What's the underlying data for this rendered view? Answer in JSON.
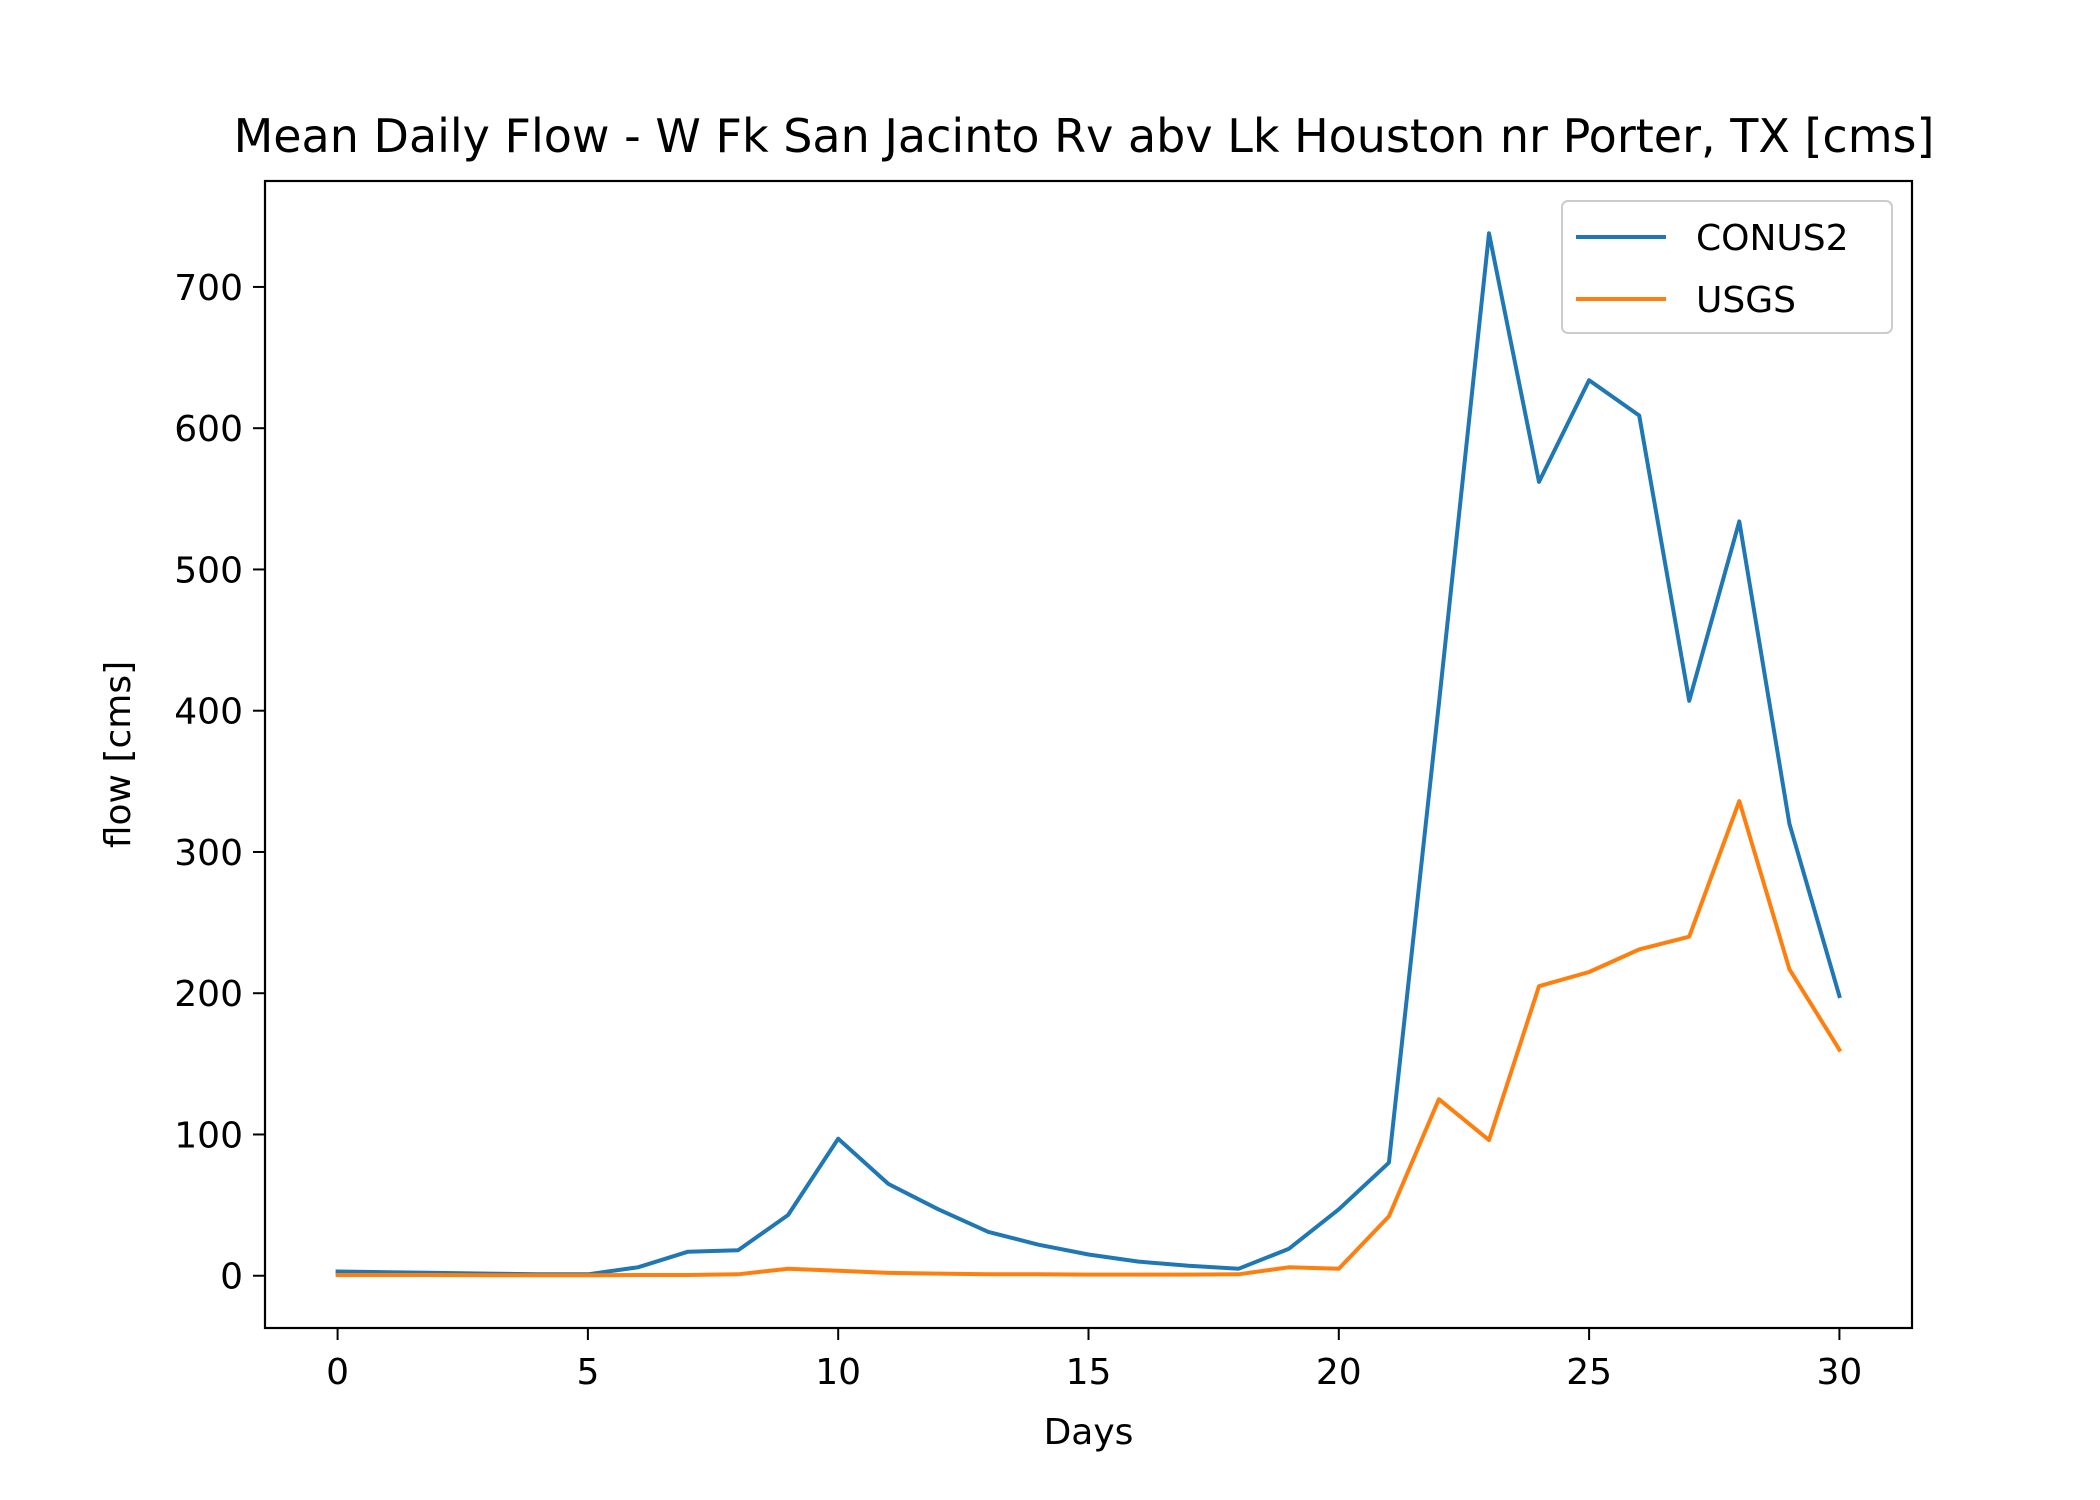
{
  "chart_data": {
    "type": "line",
    "title": "Mean Daily Flow - W Fk San Jacinto Rv abv Lk Houston nr Porter, TX [cms]",
    "xlabel": "Days",
    "ylabel": "flow [cms]",
    "xlim": [
      -1.45,
      31.45
    ],
    "ylim": [
      -37,
      775
    ],
    "xticks": [
      0,
      5,
      10,
      15,
      20,
      25,
      30
    ],
    "yticks": [
      0,
      100,
      200,
      300,
      400,
      500,
      600,
      700
    ],
    "grid": false,
    "legend": "top-right",
    "x": [
      0,
      1,
      2,
      3,
      4,
      5,
      6,
      7,
      8,
      9,
      10,
      11,
      12,
      13,
      14,
      15,
      16,
      17,
      18,
      19,
      20,
      21,
      22,
      23,
      24,
      25,
      26,
      27,
      28,
      29,
      30
    ],
    "series": [
      {
        "name": "CONUS2",
        "color": "#1f77b4",
        "values": [
          3,
          2.5,
          2,
          1.5,
          1,
          1,
          6,
          17,
          18,
          43,
          97,
          65,
          47,
          31,
          22,
          15,
          10,
          7,
          5,
          19,
          47,
          80,
          405,
          738,
          562,
          634,
          609,
          407,
          534,
          320,
          198
        ]
      },
      {
        "name": "USGS",
        "color": "#ff7f0e",
        "values": [
          0.5,
          0.5,
          0.5,
          0.3,
          0.3,
          0.3,
          0.5,
          0.5,
          1,
          5,
          3.5,
          2,
          1.5,
          1,
          1,
          0.8,
          0.8,
          0.8,
          1,
          6,
          5,
          42,
          125,
          96,
          205,
          215,
          231,
          240,
          336,
          217,
          160
        ]
      }
    ]
  }
}
